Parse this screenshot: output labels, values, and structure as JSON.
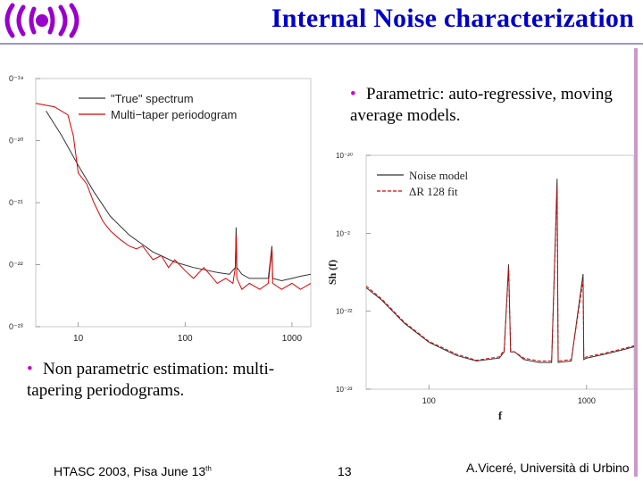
{
  "slide": {
    "title": "Internal Noise characterization",
    "bullet1": "Parametric: auto-regressive, moving average models.",
    "bullet2": "Non parametric estimation: multi-tapering periodograms.",
    "footer_left": "HTASC 2003, Pisa June 13",
    "footer_left_sup": "th",
    "page_number": "13",
    "footer_right": "A.Viceré, Università di Urbino",
    "bullet_symbol": "•"
  },
  "colors": {
    "title": "#0000cc",
    "accent": "#cc00cc",
    "logo": "#9900cc",
    "series_gray": "#333333",
    "series_red": "#dd0000"
  },
  "chart_data": [
    {
      "type": "line",
      "title": "",
      "xlabel": "",
      "ylabel": "",
      "x_scale": "log",
      "y_scale": "log",
      "xlim": [
        4,
        1500
      ],
      "ylim": [
        1e-23,
        1e-19
      ],
      "x_ticks": [
        10,
        100,
        1000
      ],
      "x_tick_labels": [
        "10",
        "100",
        "1000"
      ],
      "y_tick_labels": [
        "0⁻¹⁹",
        "0⁻²⁰",
        "0⁻²¹",
        "0⁻²²",
        "0⁻²³"
      ],
      "legend": "top-left",
      "series": [
        {
          "name": "\"True\" spectrum",
          "color": "#333333",
          "points": [
            [
              5,
              3e-20
            ],
            [
              7,
              1.2e-20
            ],
            [
              10,
              4e-21
            ],
            [
              14,
              1.5e-21
            ],
            [
              20,
              6e-22
            ],
            [
              30,
              3e-22
            ],
            [
              50,
              1.6e-22
            ],
            [
              80,
              1.1e-22
            ],
            [
              120,
              9e-23
            ],
            [
              200,
              7.5e-23
            ],
            [
              260,
              7e-23
            ],
            [
              295,
              9e-23
            ],
            [
              300,
              4e-22
            ],
            [
              305,
              9e-23
            ],
            [
              340,
              7e-23
            ],
            [
              400,
              6e-23
            ],
            [
              500,
              6e-23
            ],
            [
              600,
              6e-23
            ],
            [
              650,
              2e-22
            ],
            [
              660,
              6e-23
            ],
            [
              800,
              5.5e-23
            ],
            [
              1000,
              6e-23
            ],
            [
              1200,
              6.5e-23
            ],
            [
              1500,
              7e-23
            ]
          ]
        },
        {
          "name": "Multi−taper periodogram",
          "color": "#dd0000",
          "points": [
            [
              4,
              4e-20
            ],
            [
              6,
              3.5e-20
            ],
            [
              8,
              2.6e-20
            ],
            [
              9,
              1.2e-20
            ],
            [
              10,
              3e-21
            ],
            [
              12,
              2e-21
            ],
            [
              14,
              1e-21
            ],
            [
              17,
              5e-22
            ],
            [
              20,
              3.5e-22
            ],
            [
              25,
              2.5e-22
            ],
            [
              30,
              2e-22
            ],
            [
              35,
              1.8e-22
            ],
            [
              40,
              2e-22
            ],
            [
              50,
              1.2e-22
            ],
            [
              60,
              1.4e-22
            ],
            [
              70,
              9e-23
            ],
            [
              80,
              1.2e-22
            ],
            [
              100,
              8e-23
            ],
            [
              120,
              6e-23
            ],
            [
              150,
              9e-23
            ],
            [
              200,
              5e-23
            ],
            [
              240,
              6e-23
            ],
            [
              280,
              5e-23
            ],
            [
              295,
              9e-23
            ],
            [
              300,
              3e-22
            ],
            [
              305,
              6e-23
            ],
            [
              340,
              4e-23
            ],
            [
              400,
              5e-23
            ],
            [
              500,
              4e-23
            ],
            [
              600,
              5e-23
            ],
            [
              650,
              1.8e-22
            ],
            [
              660,
              5e-23
            ],
            [
              800,
              4e-23
            ],
            [
              1000,
              5e-23
            ],
            [
              1200,
              4e-23
            ],
            [
              1500,
              5e-23
            ]
          ]
        }
      ]
    },
    {
      "type": "line",
      "title": "",
      "xlabel": "f",
      "ylabel": "Sh (f)",
      "x_scale": "log",
      "y_scale": "log",
      "xlim": [
        40,
        2000
      ],
      "ylim": [
        1e-23,
        1e-20
      ],
      "x_ticks": [
        100,
        1000
      ],
      "x_tick_labels": [
        "100",
        "1000"
      ],
      "y_tick_labels": [
        "10⁻²⁰",
        "10⁻²",
        "10⁻²²",
        "10⁻²³"
      ],
      "legend": "top-left",
      "series": [
        {
          "name": "Noise model",
          "color": "#333333",
          "points": [
            [
              40,
              2e-22
            ],
            [
              50,
              1.4e-22
            ],
            [
              70,
              7e-23
            ],
            [
              100,
              4e-23
            ],
            [
              150,
              2.7e-23
            ],
            [
              200,
              2.3e-23
            ],
            [
              280,
              2.5e-23
            ],
            [
              300,
              3e-23
            ],
            [
              320,
              4e-22
            ],
            [
              330,
              3e-23
            ],
            [
              350,
              3e-23
            ],
            [
              400,
              2.4e-23
            ],
            [
              500,
              2.2e-23
            ],
            [
              600,
              2.2e-23
            ],
            [
              650,
              5e-21
            ],
            [
              660,
              2.2e-23
            ],
            [
              800,
              2.3e-23
            ],
            [
              950,
              3e-22
            ],
            [
              960,
              2.4e-23
            ],
            [
              1000,
              2.5e-23
            ],
            [
              1300,
              2.8e-23
            ],
            [
              1700,
              3.2e-23
            ],
            [
              2000,
              3.5e-23
            ]
          ]
        },
        {
          "name": "ΔR 128 fit",
          "color": "#dd0000",
          "points": [
            [
              40,
              2.1e-22
            ],
            [
              50,
              1.45e-22
            ],
            [
              70,
              7.2e-23
            ],
            [
              100,
              4.1e-23
            ],
            [
              150,
              2.8e-23
            ],
            [
              200,
              2.35e-23
            ],
            [
              280,
              2.6e-23
            ],
            [
              300,
              3.2e-23
            ],
            [
              320,
              3.5e-22
            ],
            [
              330,
              3.1e-23
            ],
            [
              350,
              3e-23
            ],
            [
              400,
              2.5e-23
            ],
            [
              500,
              2.3e-23
            ],
            [
              600,
              2.3e-23
            ],
            [
              650,
              4e-21
            ],
            [
              660,
              2.3e-23
            ],
            [
              800,
              2.4e-23
            ],
            [
              950,
              2.5e-22
            ],
            [
              960,
              2.5e-23
            ],
            [
              1000,
              2.6e-23
            ],
            [
              1300,
              2.9e-23
            ],
            [
              1700,
              3.3e-23
            ],
            [
              2000,
              3.6e-23
            ]
          ]
        }
      ]
    }
  ]
}
